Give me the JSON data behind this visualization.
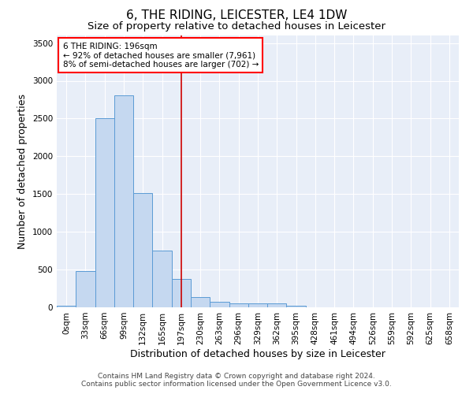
{
  "title": "6, THE RIDING, LEICESTER, LE4 1DW",
  "subtitle": "Size of property relative to detached houses in Leicester",
  "xlabel": "Distribution of detached houses by size in Leicester",
  "ylabel": "Number of detached properties",
  "footer_line1": "Contains HM Land Registry data © Crown copyright and database right 2024.",
  "footer_line2": "Contains public sector information licensed under the Open Government Licence v3.0.",
  "annotation_line1": "6 THE RIDING: 196sqm",
  "annotation_line2": "← 92% of detached houses are smaller (7,961)",
  "annotation_line3": "8% of semi-detached houses are larger (702) →",
  "bar_color": "#c5d8f0",
  "bar_edge_color": "#5b9bd5",
  "vline_color": "#cc0000",
  "categories": [
    "0sqm",
    "33sqm",
    "66sqm",
    "99sqm",
    "132sqm",
    "165sqm",
    "197sqm",
    "230sqm",
    "263sqm",
    "296sqm",
    "329sqm",
    "362sqm",
    "395sqm",
    "428sqm",
    "461sqm",
    "494sqm",
    "526sqm",
    "559sqm",
    "592sqm",
    "625sqm",
    "658sqm"
  ],
  "values": [
    20,
    480,
    2500,
    2810,
    1510,
    750,
    380,
    140,
    70,
    55,
    55,
    55,
    20,
    5,
    0,
    0,
    0,
    0,
    0,
    0,
    0
  ],
  "ylim": [
    0,
    3600
  ],
  "yticks": [
    0,
    500,
    1000,
    1500,
    2000,
    2500,
    3000,
    3500
  ],
  "vline_category_index": 6,
  "plot_bg_color": "#e8eef8",
  "title_fontsize": 11,
  "subtitle_fontsize": 9.5,
  "axis_label_fontsize": 9,
  "tick_fontsize": 7.5,
  "footer_fontsize": 6.5,
  "annotation_fontsize": 7.5
}
